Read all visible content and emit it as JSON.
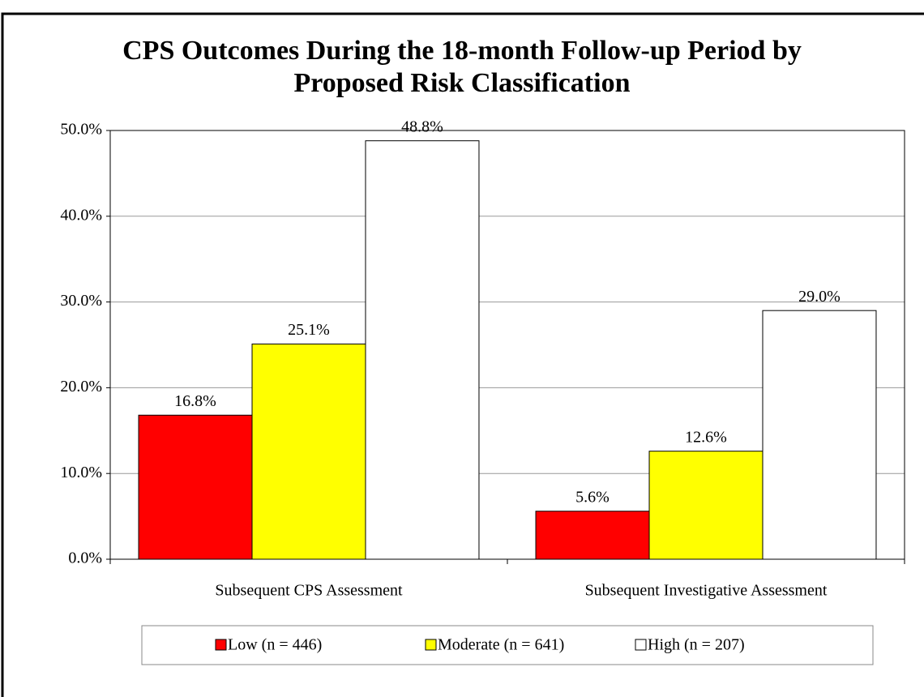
{
  "chart_data": {
    "type": "bar",
    "title": "CPS Outcomes During the 18-month Follow-up Period by Proposed Risk Classification",
    "categories": [
      "Subsequent CPS Assessment",
      "Subsequent Investigative Assessment"
    ],
    "series": [
      {
        "name": "Low (n = 446)",
        "color": "#ff0000",
        "values": [
          16.8,
          5.6
        ],
        "value_labels": [
          "16.8%",
          "5.6%"
        ]
      },
      {
        "name": "Moderate (n = 641)",
        "color": "#ffff00",
        "values": [
          25.1,
          12.6
        ],
        "value_labels": [
          "25.1%",
          "12.6%"
        ]
      },
      {
        "name": "High (n = 207)",
        "color": "#ffffff",
        "values": [
          48.8,
          29.0
        ],
        "value_labels": [
          "48.8%",
          "29.0%"
        ]
      }
    ],
    "ylim": [
      0,
      50
    ],
    "yticks": [
      {
        "value": 0,
        "label": "0.0%"
      },
      {
        "value": 10,
        "label": "10.0%"
      },
      {
        "value": 20,
        "label": "20.0%"
      },
      {
        "value": 30,
        "label": "30.0%"
      },
      {
        "value": 40,
        "label": "40.0%"
      },
      {
        "value": 50,
        "label": "50.0%"
      }
    ],
    "grid": true,
    "legend": "bottom"
  }
}
